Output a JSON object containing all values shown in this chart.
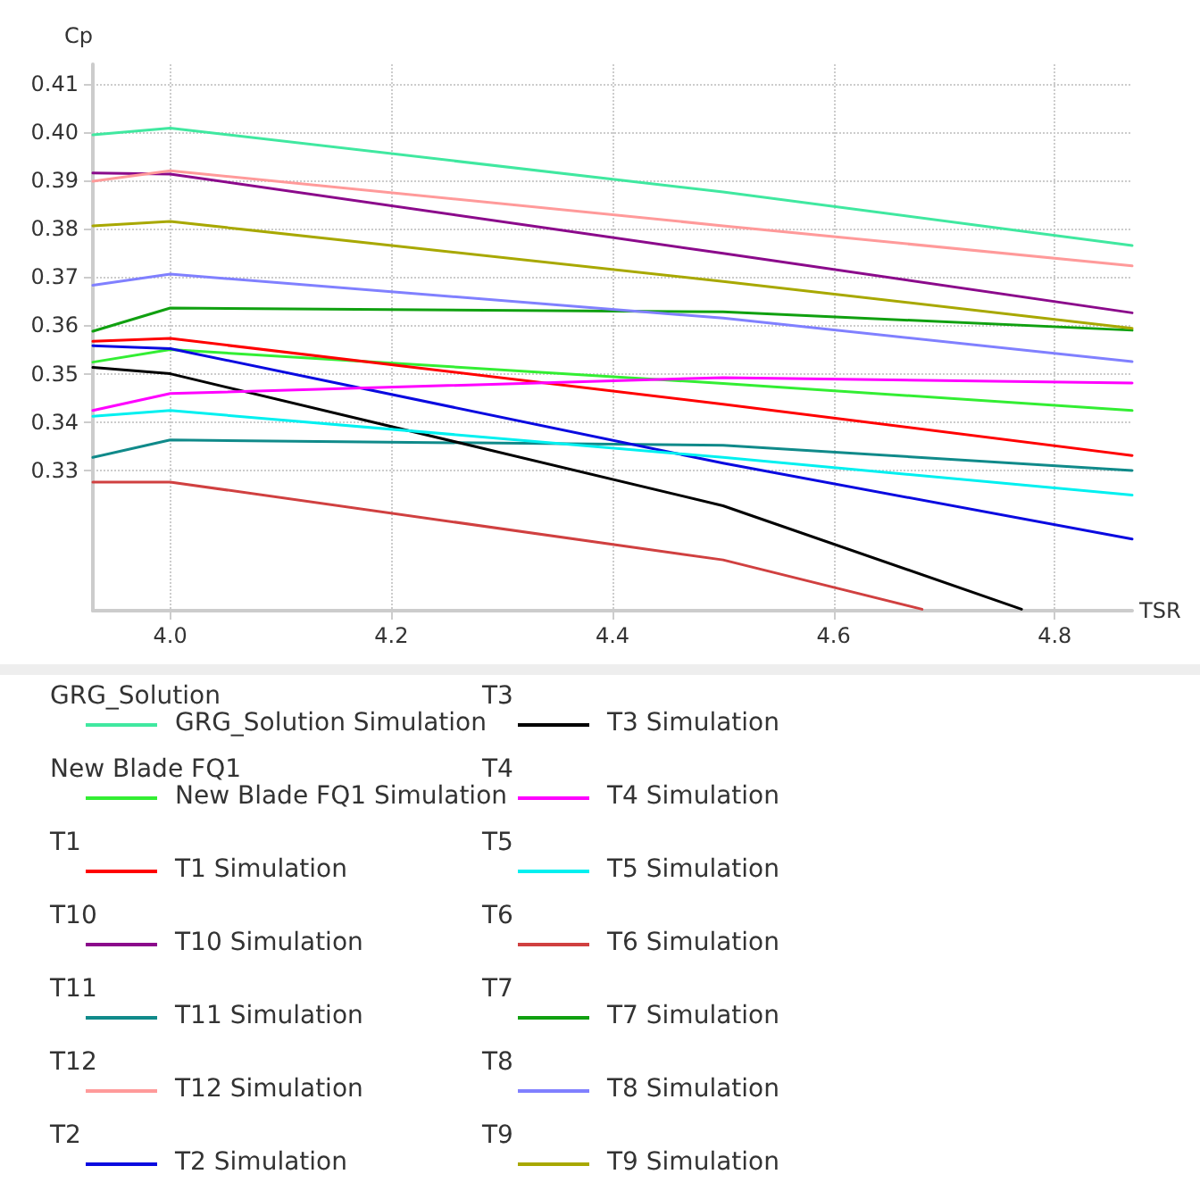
{
  "chart_data": {
    "type": "line",
    "xlabel": "TSR",
    "ylabel": "Cp",
    "x": [
      3.93,
      4.0,
      4.5,
      4.87
    ],
    "xlim": [
      3.93,
      4.87
    ],
    "xticks": [
      {
        "value": 4,
        "label": "4.0"
      },
      4.2,
      4.4,
      4.6,
      4.8
    ],
    "ylim": [
      0.301,
      0.414
    ],
    "yticks": [
      0.33,
      0.34,
      0.35,
      0.36,
      0.37,
      0.38,
      0.39,
      {
        "value": 0.4,
        "label": "0.40"
      },
      0.41
    ],
    "grid": true,
    "legend": "bottom",
    "marker": "none",
    "line_style": "solid",
    "annotations": [
      "GRG_Solution",
      "New Blade FQ1",
      "T1",
      "T10",
      "T11",
      "T12",
      "T2",
      "T3",
      "T4",
      "T5",
      "T6",
      "T7",
      "T8",
      "T9"
    ],
    "series": [
      {
        "name": "GRG_Solution Simulation",
        "color": "#40e8a0",
        "values": [
          0.3994,
          0.4008,
          0.3876,
          0.3765
        ]
      },
      {
        "name": "New Blade FQ1 Simulation",
        "color": "#33ee33",
        "values": [
          0.3524,
          0.355,
          0.348,
          0.3424
        ]
      },
      {
        "name": "T1 Simulation",
        "color": "#ff0000",
        "values": [
          0.3567,
          0.3573,
          0.3437,
          0.3331
        ]
      },
      {
        "name": "T10 Simulation",
        "color": "#8b0a8b",
        "values": [
          0.3915,
          0.3913,
          0.3749,
          0.3626
        ]
      },
      {
        "name": "T11 Simulation",
        "color": "#108a8a",
        "values": [
          0.3327,
          0.3363,
          0.3352,
          0.33
        ]
      },
      {
        "name": "T12 Simulation",
        "color": "#ff9a9a",
        "values": [
          0.3898,
          0.392,
          0.3806,
          0.3723
        ]
      },
      {
        "name": "T2 Simulation",
        "color": "#0a0ae0",
        "values": [
          0.3558,
          0.3552,
          0.3315,
          0.3158
        ]
      },
      {
        "name": "T3 Simulation",
        "color": "#000000",
        "x": [
          3.93,
          4.0,
          4.5,
          4.77
        ],
        "values": [
          0.3513,
          0.35,
          0.3227,
          0.3013
        ]
      },
      {
        "name": "T4 Simulation",
        "color": "#ff00ff",
        "values": [
          0.3424,
          0.3459,
          0.3492,
          0.3481
        ]
      },
      {
        "name": "T5 Simulation",
        "color": "#00f0f0",
        "values": [
          0.3412,
          0.3424,
          0.3327,
          0.3249
        ]
      },
      {
        "name": "T6 Simulation",
        "color": "#d04040",
        "x": [
          3.93,
          4.0,
          4.5,
          4.68
        ],
        "values": [
          0.3276,
          0.3276,
          0.3115,
          0.3013
        ]
      },
      {
        "name": "T7 Simulation",
        "color": "#10a010",
        "values": [
          0.3588,
          0.3636,
          0.3628,
          0.359
        ]
      },
      {
        "name": "T8 Simulation",
        "color": "#8080ff",
        "values": [
          0.3683,
          0.3706,
          0.3615,
          0.3525
        ]
      },
      {
        "name": "T9 Simulation",
        "color": "#a8a800",
        "values": [
          0.3806,
          0.3815,
          0.3691,
          0.3594
        ]
      }
    ]
  }
}
